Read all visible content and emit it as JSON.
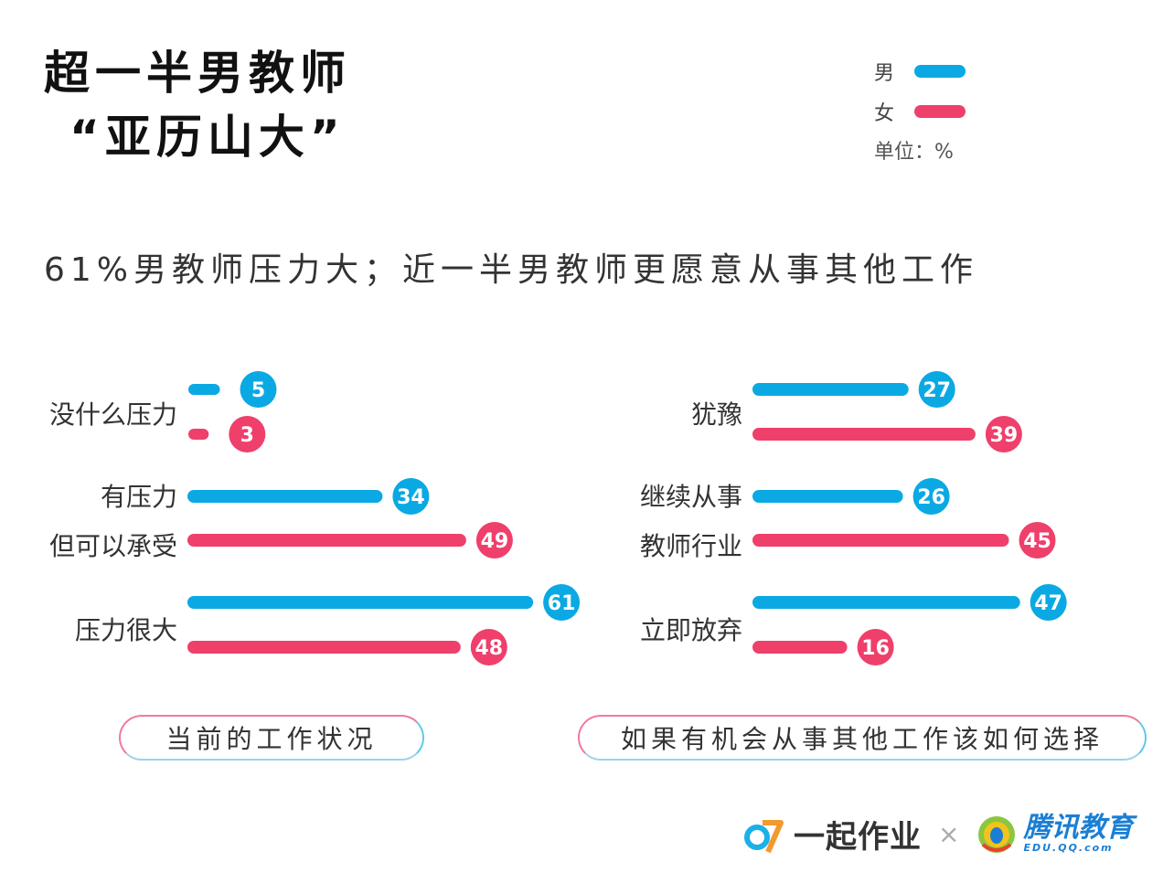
{
  "title_line1": "超一半男教师",
  "title_line2": "“亚历山大”",
  "subtitle": "61%男教师压力大；近一半男教师更愿意从事其他工作",
  "legend": {
    "male": "男",
    "female": "女",
    "unit": "单位：%"
  },
  "colors": {
    "male": "#0ba9e3",
    "female": "#ef3f6b"
  },
  "chart_data": [
    {
      "type": "bar",
      "title": "当前的工作状况",
      "categories": [
        "没什么压力",
        "有压力但可以承受",
        "压力很大"
      ],
      "category_lines": [
        [
          "没什么压力"
        ],
        [
          "有压力",
          "但可以承受"
        ],
        [
          "压力很大"
        ]
      ],
      "series": [
        {
          "name": "男",
          "values": [
            5,
            34,
            61
          ]
        },
        {
          "name": "女",
          "values": [
            3,
            49,
            48
          ]
        }
      ],
      "unit": "%"
    },
    {
      "type": "bar",
      "title": "如果有机会从事其他工作该如何选择",
      "categories": [
        "犹豫",
        "继续从事教师行业",
        "立即放弃"
      ],
      "category_lines": [
        [
          "犹豫"
        ],
        [
          "继续从事",
          "教师行业"
        ],
        [
          "立即放弃"
        ]
      ],
      "series": [
        {
          "name": "男",
          "values": [
            27,
            26,
            47
          ]
        },
        {
          "name": "女",
          "values": [
            39,
            45,
            16
          ]
        }
      ],
      "unit": "%"
    }
  ],
  "footer": {
    "brand1": "一起作业",
    "separator": "×",
    "brand2": "腾讯教育",
    "brand2_sub": "EDU.QQ.com"
  }
}
